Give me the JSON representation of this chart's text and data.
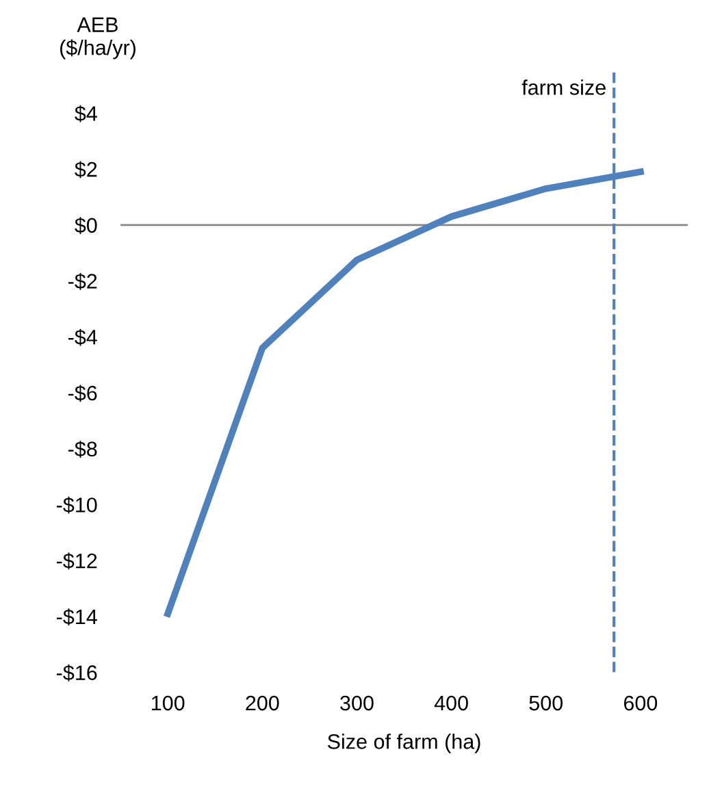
{
  "chart_data": {
    "type": "line",
    "xlabel": "Size of farm (ha)",
    "ylabel": "AEB\n($/ha/yr)",
    "x": [
      100,
      200,
      300,
      400,
      500,
      600
    ],
    "series": [
      {
        "color": "#4f81bd",
        "values": [
          -13.9,
          -4.4,
          -1.25,
          0.3,
          1.3,
          1.9
        ]
      }
    ],
    "xlim": [
      50,
      650
    ],
    "xticks": [
      100,
      200,
      300,
      400,
      500,
      600
    ],
    "ylim": [
      -16,
      5.5
    ],
    "yticks": [
      {
        "value": -16,
        "label": "-$16"
      },
      {
        "value": -14,
        "label": "-$14"
      },
      {
        "value": -12,
        "label": "-$12"
      },
      {
        "value": -10,
        "label": "-$10"
      },
      {
        "value": -8,
        "label": "-$8"
      },
      {
        "value": -6,
        "label": "-$6"
      },
      {
        "value": -4,
        "label": "-$4"
      },
      {
        "value": -2,
        "label": "-$2"
      },
      {
        "value": 0,
        "label": "$0"
      },
      {
        "value": 2,
        "label": "$2"
      },
      {
        "value": 4,
        "label": "$4"
      }
    ],
    "ref_lines": [
      {
        "axis": "y",
        "value": 0,
        "color": "#868686",
        "line_style": "solid"
      },
      {
        "axis": "x",
        "value": 572,
        "label": "farm size",
        "color": "#4f81bd",
        "line_style": "dashed"
      }
    ],
    "grid": false,
    "legend": false,
    "marker": "none",
    "line_style": "solid"
  }
}
